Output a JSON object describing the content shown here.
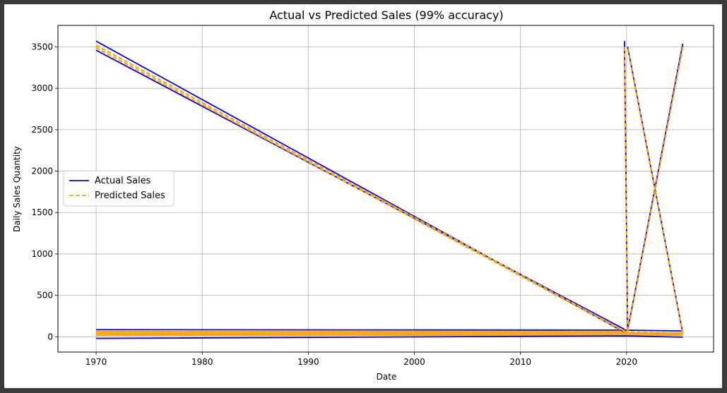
{
  "chart_data": {
    "type": "line",
    "title": "Actual vs Predicted Sales (99% accuracy)",
    "xlabel": "Date",
    "ylabel": "Daily Sales Quantity",
    "xlim": [
      1966.4,
      2028.2
    ],
    "ylim": [
      -185,
      3760
    ],
    "xticks": [
      1970,
      1980,
      1990,
      2000,
      2010,
      2020
    ],
    "yticks": [
      0,
      500,
      1000,
      1500,
      2000,
      2500,
      3000,
      3500
    ],
    "grid": true,
    "legend_position": "center-left",
    "series": [
      {
        "name": "Actual Sales",
        "color": "#0000ff",
        "style": "solid",
        "segments": [
          [
            [
              1970.0,
              3570
            ],
            [
              2019.8,
              55
            ]
          ],
          [
            [
              1970.0,
              3460
            ],
            [
              2019.8,
              90
            ]
          ],
          [
            [
              1970.0,
              85
            ],
            [
              2019.8,
              80
            ],
            [
              2025.3,
              70
            ]
          ],
          [
            [
              1970.0,
              -20
            ],
            [
              2019.8,
              10
            ],
            [
              2025.3,
              -5
            ]
          ],
          [
            [
              2019.8,
              3570
            ],
            [
              2020.1,
              70
            ]
          ],
          [
            [
              2020.1,
              3500
            ],
            [
              2025.3,
              40
            ]
          ],
          [
            [
              2020.1,
              80
            ],
            [
              2025.3,
              3540
            ]
          ]
        ]
      },
      {
        "name": "Predicted Sales",
        "color": "#ffa500",
        "style": "dashed",
        "segments": [
          [
            [
              1970.0,
              3520
            ],
            [
              2019.8,
              70
            ]
          ],
          [
            [
              1970.0,
              3490
            ],
            [
              2019.8,
              60
            ]
          ],
          [
            [
              1970.0,
              60
            ],
            [
              2019.8,
              60
            ],
            [
              2025.3,
              40
            ]
          ],
          [
            [
              1970.0,
              20
            ],
            [
              2019.8,
              30
            ],
            [
              2025.3,
              20
            ]
          ],
          [
            [
              2019.8,
              3500
            ],
            [
              2020.1,
              60
            ]
          ],
          [
            [
              2020.1,
              3480
            ],
            [
              2025.3,
              30
            ]
          ],
          [
            [
              2020.1,
              60
            ],
            [
              2025.3,
              3500
            ]
          ]
        ],
        "band": {
          "x": [
            1970.0,
            2019.8
          ],
          "y": [
            10,
            70
          ],
          "x2": [
            2019.8,
            2025.3
          ],
          "y2": [
            10,
            55
          ]
        }
      }
    ]
  }
}
